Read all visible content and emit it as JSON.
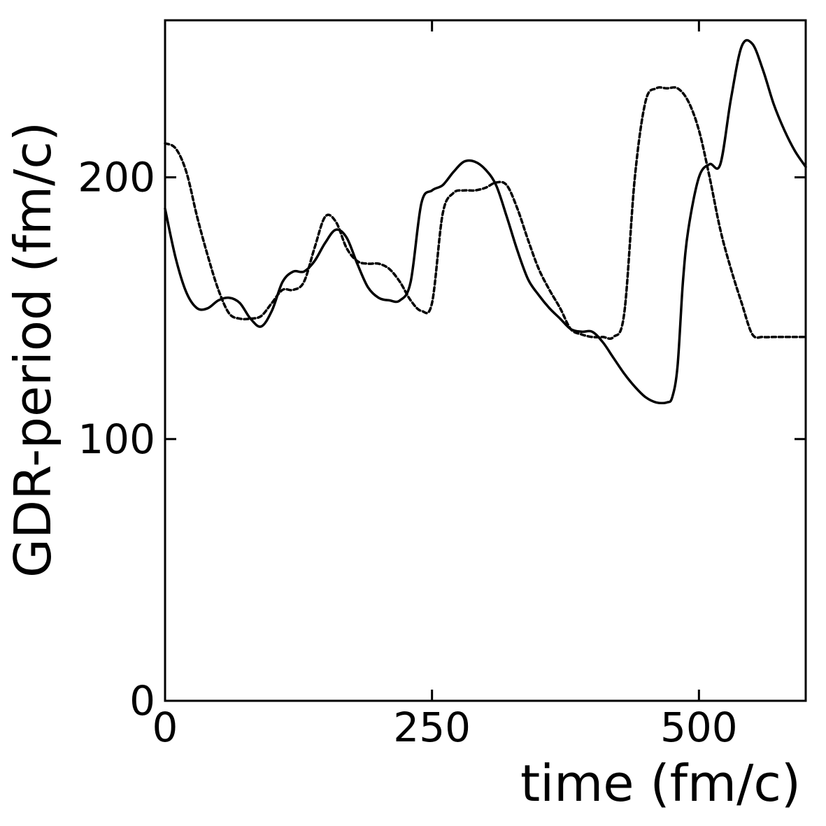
{
  "chart_data": {
    "type": "line",
    "xlabel": "time (fm/c)",
    "ylabel": "GDR-period (fm/c)",
    "xlim": [
      0,
      600
    ],
    "ylim": [
      0,
      260
    ],
    "xticks": [
      0,
      250,
      500
    ],
    "yticks": [
      0,
      100,
      200
    ],
    "xtick_labels": [
      "0",
      "250",
      "500"
    ],
    "ytick_labels": [
      "0",
      "100",
      "200"
    ],
    "grid": false,
    "legend": "none",
    "series": [
      {
        "style": "solid",
        "x": [
          0,
          10,
          20,
          30,
          40,
          50,
          60,
          70,
          80,
          90,
          100,
          110,
          120,
          130,
          140,
          150,
          160,
          170,
          180,
          190,
          200,
          210,
          220,
          230,
          240,
          250,
          260,
          270,
          280,
          290,
          300,
          310,
          320,
          330,
          340,
          350,
          360,
          370,
          380,
          390,
          400,
          410,
          420,
          430,
          440,
          450,
          460,
          470,
          475,
          480,
          485,
          490,
          500,
          510,
          520,
          530,
          540,
          550,
          560,
          570,
          580,
          590,
          600
        ],
        "y": [
          188,
          169,
          156,
          150,
          150,
          153,
          154,
          152,
          146,
          143,
          149,
          160,
          164,
          164,
          168,
          175,
          180,
          177,
          167,
          158,
          154,
          153,
          153,
          160,
          190,
          195,
          197,
          202,
          206,
          206,
          203,
          197,
          185,
          172,
          161,
          155,
          150,
          146,
          142,
          141,
          141,
          137,
          131,
          125,
          120,
          116,
          114,
          114,
          116,
          128,
          160,
          180,
          200,
          205,
          205,
          230,
          250,
          251,
          241,
          228,
          218,
          210,
          204
        ]
      },
      {
        "style": "dotted",
        "x": [
          0,
          10,
          20,
          30,
          40,
          50,
          60,
          70,
          80,
          90,
          100,
          110,
          120,
          130,
          140,
          150,
          160,
          170,
          180,
          190,
          200,
          210,
          220,
          230,
          240,
          250,
          260,
          270,
          280,
          290,
          300,
          310,
          320,
          330,
          340,
          350,
          360,
          370,
          380,
          390,
          400,
          410,
          420,
          430,
          440,
          450,
          460,
          470,
          480,
          490,
          500,
          510,
          520,
          530,
          540,
          550,
          560,
          570,
          580,
          590,
          600
        ],
        "y": [
          213,
          211,
          202,
          185,
          170,
          157,
          148,
          146,
          146,
          147,
          152,
          157,
          157,
          160,
          173,
          185,
          183,
          173,
          168,
          167,
          167,
          165,
          160,
          153,
          149,
          152,
          186,
          194,
          195,
          195,
          196,
          198,
          197,
          188,
          176,
          165,
          157,
          150,
          142,
          140,
          139,
          139,
          139,
          148,
          200,
          229,
          234,
          234,
          234,
          229,
          218,
          200,
          180,
          165,
          152,
          140,
          139,
          139,
          139,
          139,
          139
        ]
      }
    ]
  }
}
